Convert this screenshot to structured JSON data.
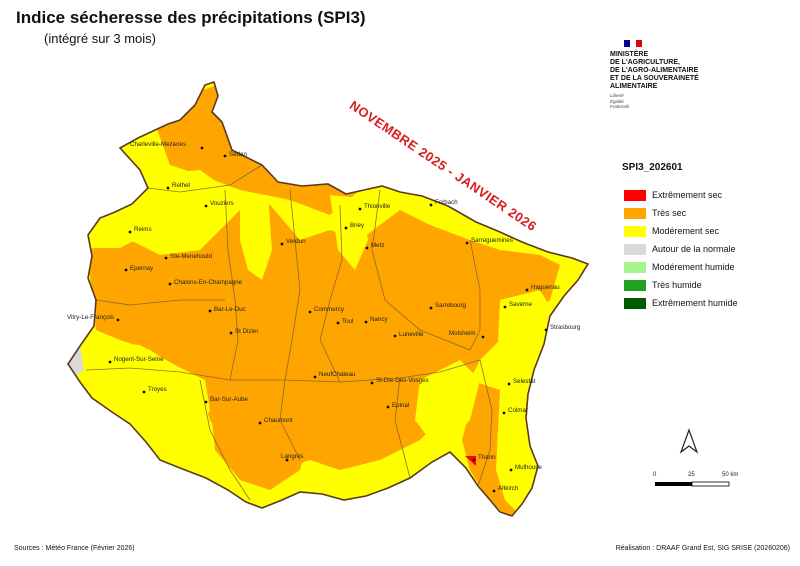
{
  "title": "Indice sécheresse des précipitations (SPI3)",
  "subtitle": "(intégré sur 3 mois)",
  "period": "NOVEMBRE 2025 - JANVIER 2026",
  "ministry": {
    "name": "Ministère de l'Agriculture, de l'Agro-alimentaire et de la Souveraineté alimentaire",
    "line1": "MINISTÈRE",
    "line2": "DE L'AGRICULTURE,",
    "line3": "DE L'AGRO-ALIMENTAIRE",
    "line4": "ET DE LA SOUVERAINETÉ",
    "line5": "ALIMENTAIRE",
    "motto1": "Liberté",
    "motto2": "Égalité",
    "motto3": "Fraternité"
  },
  "legend": {
    "title": "SPI3_202601",
    "items": [
      {
        "label": "Extrêmement sec",
        "color": "#ff0000"
      },
      {
        "label": "Très sec",
        "color": "#ffa500"
      },
      {
        "label": "Modérement sec",
        "color": "#ffff00"
      },
      {
        "label": "Autour de la normale",
        "color": "#d9d9d9"
      },
      {
        "label": "Modérement humide",
        "color": "#a6f28c"
      },
      {
        "label": "Très humide",
        "color": "#22a022"
      },
      {
        "label": "Extrêmement humide",
        "color": "#005a00"
      }
    ]
  },
  "scale": {
    "min": "0",
    "mid": "25",
    "max": "50 km"
  },
  "north_icon": "north-arrow-icon",
  "cities": [
    "Charleville-Mezieres",
    "Sedan",
    "Rethel",
    "Vouziers",
    "Reims",
    "Ste-Menehould",
    "Epernay",
    "Chalons-En-Champagne",
    "Vitry-Le-François",
    "Bar-Le-Duc",
    "St Dizier",
    "Verdun",
    "Commercy",
    "Toul",
    "Nancy",
    "Luneville",
    "Briey",
    "Metz",
    "Thionville",
    "Forbach",
    "Sarreguemines",
    "Sarrebourg",
    "Haguenau",
    "Saverne",
    "Strasbourg",
    "Molsheim",
    "Selestat",
    "Colmar",
    "Mulhouse",
    "Thann",
    "Altkirch",
    "Nogent-Sur-Seine",
    "Troyes",
    "Bar-Sur-Aube",
    "Chaumont",
    "Langres",
    "NeufChateau",
    "St-Die-Des-Vosges",
    "Epinal"
  ],
  "sources": "Sources : Météo France (Février 2026)",
  "credit": "Réalisation : DRAAF Grand Est, SIG SRISE (20260206)"
}
